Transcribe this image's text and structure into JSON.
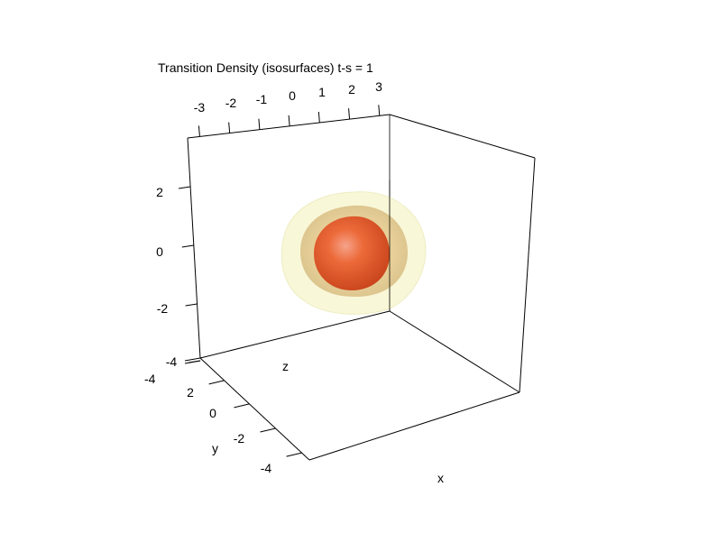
{
  "chart_data": {
    "type": "3d-isosurface",
    "title": "Transition Density (isosurfaces) t-s = 1",
    "xlabel": "x",
    "ylabel": "y",
    "zlabel": "z",
    "x_ticks": [
      "-3",
      "-2",
      "-1",
      "0",
      "1",
      "2",
      "3"
    ],
    "y_ticks": [
      "2",
      "0",
      "-2",
      "-4"
    ],
    "z_ticks": [
      "2",
      "0",
      "-2",
      "-4"
    ],
    "extra_labels": [
      "-4"
    ],
    "surfaces": [
      {
        "level": "outer",
        "color": "#f2f0b8",
        "opacity": 0.55
      },
      {
        "level": "middle",
        "color": "#c8963c",
        "opacity": 0.5
      },
      {
        "level": "inner",
        "color": "#e2521e",
        "opacity": 1
      }
    ],
    "box": true,
    "grid": false
  }
}
